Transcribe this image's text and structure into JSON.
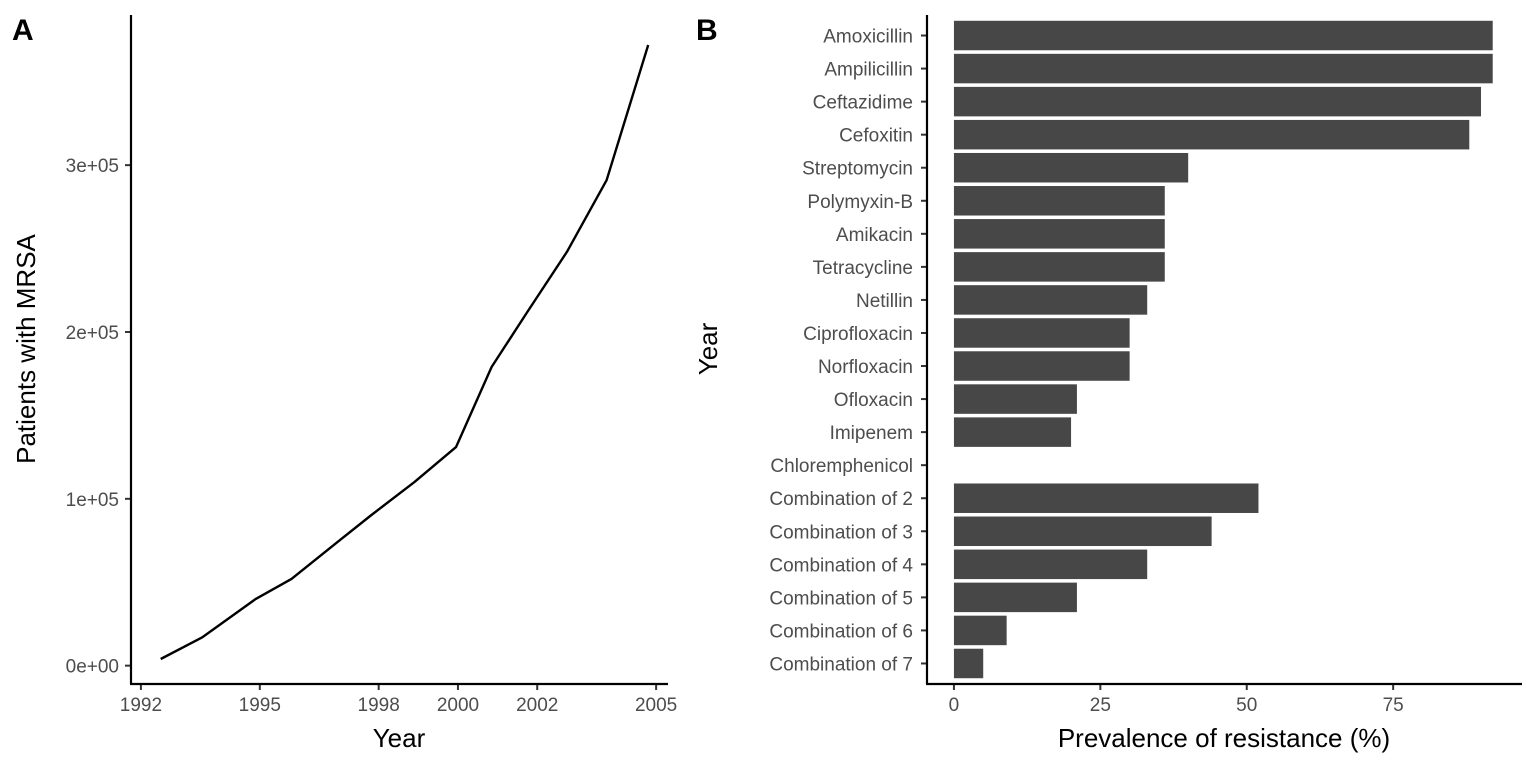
{
  "chart_data": [
    {
      "panel": "A",
      "type": "line",
      "title": "",
      "xlabel": "Year",
      "ylabel": "Patients with MRSA",
      "x": [
        1992.5,
        1993.55,
        1994.9,
        1995.8,
        1996.9,
        1997.8,
        1998.9,
        1999.95,
        2000.85,
        2001.75,
        2002.75,
        2003.75,
        2004.8
      ],
      "y": [
        4000,
        17000,
        40000,
        52000,
        73000,
        90000,
        110000,
        131000,
        179000,
        212000,
        248000,
        291000,
        372000
      ],
      "xlim": [
        1991.75,
        2005.3
      ],
      "ylim": [
        -11000,
        390000
      ],
      "x_ticks": [
        1992,
        1995,
        1998,
        2000,
        2002,
        2005
      ],
      "x_tick_labels": [
        "1992",
        "1995",
        "1998",
        "2000",
        "2002",
        "2005"
      ],
      "y_ticks": [
        0,
        100000,
        200000,
        300000
      ],
      "y_tick_labels": [
        "0e+00",
        "1e+05",
        "2e+05",
        "3e+05"
      ],
      "line_color": "#000000",
      "grid": false,
      "legend": "none"
    },
    {
      "panel": "B",
      "type": "bar",
      "orientation": "horizontal",
      "title": "",
      "xlabel": "Prevalence of resistance (%)",
      "ylabel": "Year",
      "categories": [
        "Amoxicillin",
        "Ampilicillin",
        "Ceftazidime",
        "Cefoxitin",
        "Streptomycin",
        "Polymyxin-B",
        "Amikacin",
        "Tetracycline",
        "Netillin",
        "Ciprofloxacin",
        "Norfloxacin",
        "Ofloxacin",
        "Imipenem",
        "Chloremphenicol",
        "Combination of 2",
        "Combination of 3",
        "Combination of 4",
        "Combination of 5",
        "Combination of 6",
        "Combination of 7"
      ],
      "values": [
        92,
        92,
        90,
        88,
        40,
        36,
        36,
        36,
        33,
        30,
        30,
        21,
        20,
        0,
        52,
        44,
        33,
        21,
        9,
        5
      ],
      "xlim": [
        -4.6,
        97
      ],
      "x_ticks": [
        0,
        25,
        50,
        75
      ],
      "x_tick_labels": [
        "0",
        "25",
        "50",
        "75"
      ],
      "bar_color": "#474747",
      "grid": false,
      "legend": "none"
    }
  ],
  "panels": {
    "a_label": "A",
    "b_label": "B"
  }
}
